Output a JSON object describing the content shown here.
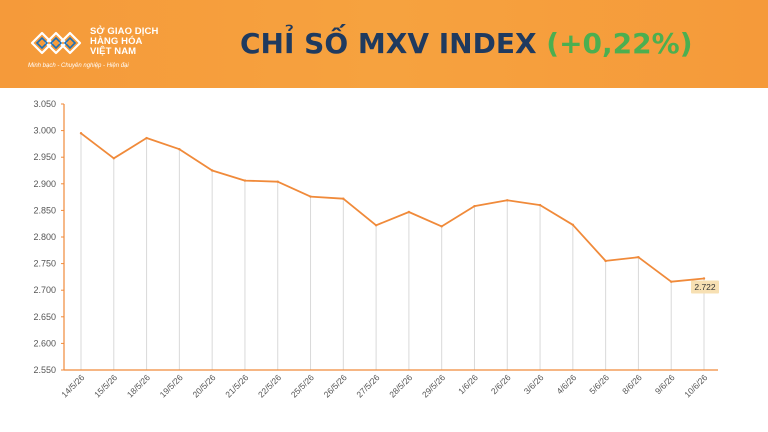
{
  "header": {
    "logo_text_line1": "SỞ GIAO DỊCH",
    "logo_text_line2": "HÀNG HÓA",
    "logo_text_line3": "VIỆT NAM",
    "tagline": "Minh bạch - Chuyên nghiệp - Hiện đại",
    "title_main": "CHỈ SỐ MXV INDEX",
    "title_change": "(+0,22%)",
    "colors": {
      "background": "#f59a3a",
      "title": "#1f3a5f",
      "change": "#4caf50"
    }
  },
  "chart_data": {
    "type": "line",
    "title": "",
    "xlabel": "",
    "ylabel": "",
    "x": [
      "14/5/26",
      "15/5/26",
      "18/5/26",
      "19/5/26",
      "20/5/26",
      "21/5/26",
      "22/5/26",
      "25/5/26",
      "26/5/26",
      "27/5/26",
      "28/5/26",
      "29/5/26",
      "1/6/26",
      "2/6/26",
      "3/6/26",
      "4/6/26",
      "5/6/26",
      "8/6/26",
      "9/6/26",
      "10/6/26"
    ],
    "series": [
      {
        "values": [
          2995,
          2948,
          2986,
          2965,
          2925,
          2906,
          2904,
          2876,
          2872,
          2822,
          2847,
          2820,
          2858,
          2869,
          2860,
          2823,
          2755,
          2762,
          2716,
          2722
        ]
      }
    ],
    "ylim": [
      2550,
      3050
    ],
    "yticks": [
      2550,
      2600,
      2650,
      2700,
      2750,
      2800,
      2850,
      2900,
      2950,
      3000,
      3050
    ],
    "ytick_labels": [
      "2.550",
      "2.600",
      "2.650",
      "2.700",
      "2.750",
      "2.800",
      "2.850",
      "2.900",
      "2.950",
      "3.000",
      "3.050"
    ],
    "last_value_label": "2.722",
    "grid": false,
    "drop_lines": true,
    "line_color": "#f08a3a",
    "drop_line_color": "#d9d9d9",
    "label_box_color": "#f7e0b3"
  }
}
